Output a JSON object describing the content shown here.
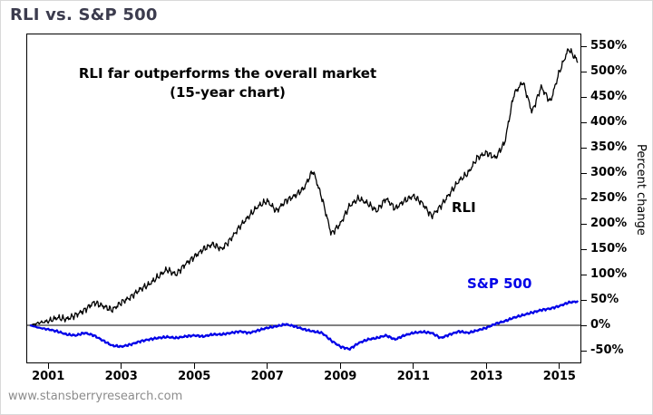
{
  "header": {
    "title": "RLI vs. S&P 500"
  },
  "annotation": {
    "line1": "RLI far outperforms the overall market",
    "line2": "(15-year chart)"
  },
  "series_labels": {
    "rli": "RLI",
    "sp500": "S&P 500"
  },
  "footer": {
    "source": "www.stansberryresearch.com"
  },
  "colors": {
    "title": "#3c3c4e",
    "rli_line": "#000000",
    "sp500_line": "#0000e8",
    "footer_text": "#8c8c8c",
    "axis": "#000000"
  },
  "chart_data": {
    "type": "line",
    "title": "RLI vs. S&P 500",
    "xlabel": "",
    "ylabel": "Percent change",
    "grid": false,
    "legend_position": "inline-labels",
    "zero_line": 0,
    "xlim": [
      2000.4,
      2015.6
    ],
    "ylim": [
      -75,
      575
    ],
    "x_ticks": [
      2001,
      2003,
      2005,
      2007,
      2009,
      2011,
      2013,
      2015
    ],
    "y_ticks": [
      -50,
      0,
      50,
      100,
      150,
      200,
      250,
      300,
      350,
      400,
      450,
      500,
      550
    ],
    "y_tick_suffix": "%",
    "x": [
      2000.5,
      2000.75,
      2001,
      2001.25,
      2001.5,
      2001.75,
      2002,
      2002.25,
      2002.5,
      2002.75,
      2003,
      2003.25,
      2003.5,
      2003.75,
      2004,
      2004.25,
      2004.5,
      2004.75,
      2005,
      2005.25,
      2005.5,
      2005.75,
      2006,
      2006.25,
      2006.5,
      2006.75,
      2007,
      2007.25,
      2007.5,
      2007.75,
      2008,
      2008.25,
      2008.5,
      2008.75,
      2009,
      2009.25,
      2009.5,
      2009.75,
      2010,
      2010.25,
      2010.5,
      2010.75,
      2011,
      2011.25,
      2011.5,
      2011.75,
      2012,
      2012.25,
      2012.5,
      2012.75,
      2013,
      2013.25,
      2013.5,
      2013.75,
      2014,
      2014.25,
      2014.5,
      2014.75,
      2015,
      2015.25,
      2015.5
    ],
    "series": [
      {
        "name": "RLI",
        "color": "#000000",
        "values": [
          0,
          5,
          8,
          15,
          12,
          20,
          30,
          45,
          38,
          30,
          45,
          55,
          70,
          80,
          95,
          110,
          100,
          120,
          135,
          150,
          160,
          150,
          170,
          195,
          215,
          235,
          245,
          225,
          245,
          255,
          270,
          305,
          250,
          180,
          200,
          235,
          250,
          240,
          225,
          250,
          230,
          245,
          255,
          240,
          215,
          235,
          260,
          285,
          300,
          330,
          340,
          330,
          360,
          455,
          480,
          420,
          470,
          440,
          500,
          545,
          520
        ]
      },
      {
        "name": "S&P 500",
        "color": "#0000e8",
        "values": [
          0,
          -5,
          -8,
          -12,
          -18,
          -20,
          -15,
          -20,
          -30,
          -40,
          -42,
          -38,
          -32,
          -28,
          -25,
          -23,
          -25,
          -22,
          -20,
          -22,
          -18,
          -18,
          -15,
          -12,
          -15,
          -10,
          -5,
          -2,
          2,
          -2,
          -8,
          -12,
          -15,
          -30,
          -42,
          -47,
          -35,
          -28,
          -25,
          -20,
          -28,
          -20,
          -15,
          -13,
          -15,
          -25,
          -18,
          -12,
          -15,
          -10,
          -5,
          3,
          8,
          15,
          20,
          25,
          30,
          33,
          38,
          45,
          47
        ]
      }
    ]
  }
}
